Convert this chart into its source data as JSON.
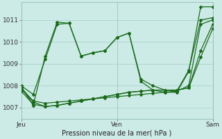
{
  "title": "Pression niveau de la mer( hPa )",
  "background_color": "#cceae6",
  "grid_color": "#aad4cc",
  "line_color": "#1a6b1a",
  "xlim": [
    0,
    48
  ],
  "ylim": [
    1006.5,
    1011.8
  ],
  "yticks": [
    1007,
    1008,
    1009,
    1010,
    1011
  ],
  "xtick_positions": [
    0,
    24,
    48
  ],
  "xtick_labels": [
    "Jeu",
    "Ven",
    "Sam"
  ],
  "series": [
    {
      "x": [
        0,
        3,
        6,
        9,
        12,
        15,
        18,
        21,
        24,
        27,
        30,
        33,
        36,
        39,
        42,
        45,
        48
      ],
      "y": [
        1008.0,
        1007.6,
        1009.2,
        1010.8,
        1010.85,
        1009.35,
        1009.5,
        1009.6,
        1010.2,
        1010.4,
        1008.3,
        1008.0,
        1007.8,
        1007.75,
        1008.7,
        1011.0,
        1011.1
      ]
    },
    {
      "x": [
        0,
        3,
        6,
        9,
        12,
        15,
        18,
        21,
        24,
        27,
        30,
        33,
        36,
        39,
        42,
        45,
        48
      ],
      "y": [
        1007.9,
        1007.3,
        1007.2,
        1007.25,
        1007.3,
        1007.35,
        1007.4,
        1007.45,
        1007.5,
        1007.55,
        1007.6,
        1007.65,
        1007.7,
        1007.75,
        1008.0,
        1010.8,
        1011.0
      ]
    },
    {
      "x": [
        0,
        3,
        6,
        9,
        12,
        15,
        18,
        21,
        24,
        27,
        30,
        33,
        36,
        39,
        42,
        45,
        48
      ],
      "y": [
        1007.75,
        1007.15,
        1007.05,
        1007.1,
        1007.2,
        1007.3,
        1007.4,
        1007.5,
        1007.6,
        1007.7,
        1007.75,
        1007.8,
        1007.8,
        1007.8,
        1007.9,
        1009.6,
        1010.8
      ]
    },
    {
      "x": [
        0,
        3,
        6,
        9,
        12,
        15,
        18,
        21,
        24,
        27,
        30,
        33,
        36,
        39,
        42,
        45,
        48
      ],
      "y": [
        1007.85,
        1007.25,
        1007.05,
        1007.1,
        1007.2,
        1007.3,
        1007.4,
        1007.5,
        1007.6,
        1007.7,
        1007.75,
        1007.8,
        1007.8,
        1007.8,
        1007.9,
        1009.3,
        1010.6
      ]
    },
    {
      "x": [
        0,
        3,
        6,
        9,
        12,
        15,
        18,
        21,
        24,
        27,
        30,
        33,
        36,
        39,
        42,
        45,
        48
      ],
      "y": [
        1007.95,
        1007.1,
        1009.35,
        1010.9,
        1010.85,
        1009.35,
        1009.5,
        1009.6,
        1010.2,
        1010.4,
        1008.2,
        1007.8,
        1007.7,
        1007.7,
        1008.65,
        1011.6,
        1011.6
      ]
    }
  ]
}
